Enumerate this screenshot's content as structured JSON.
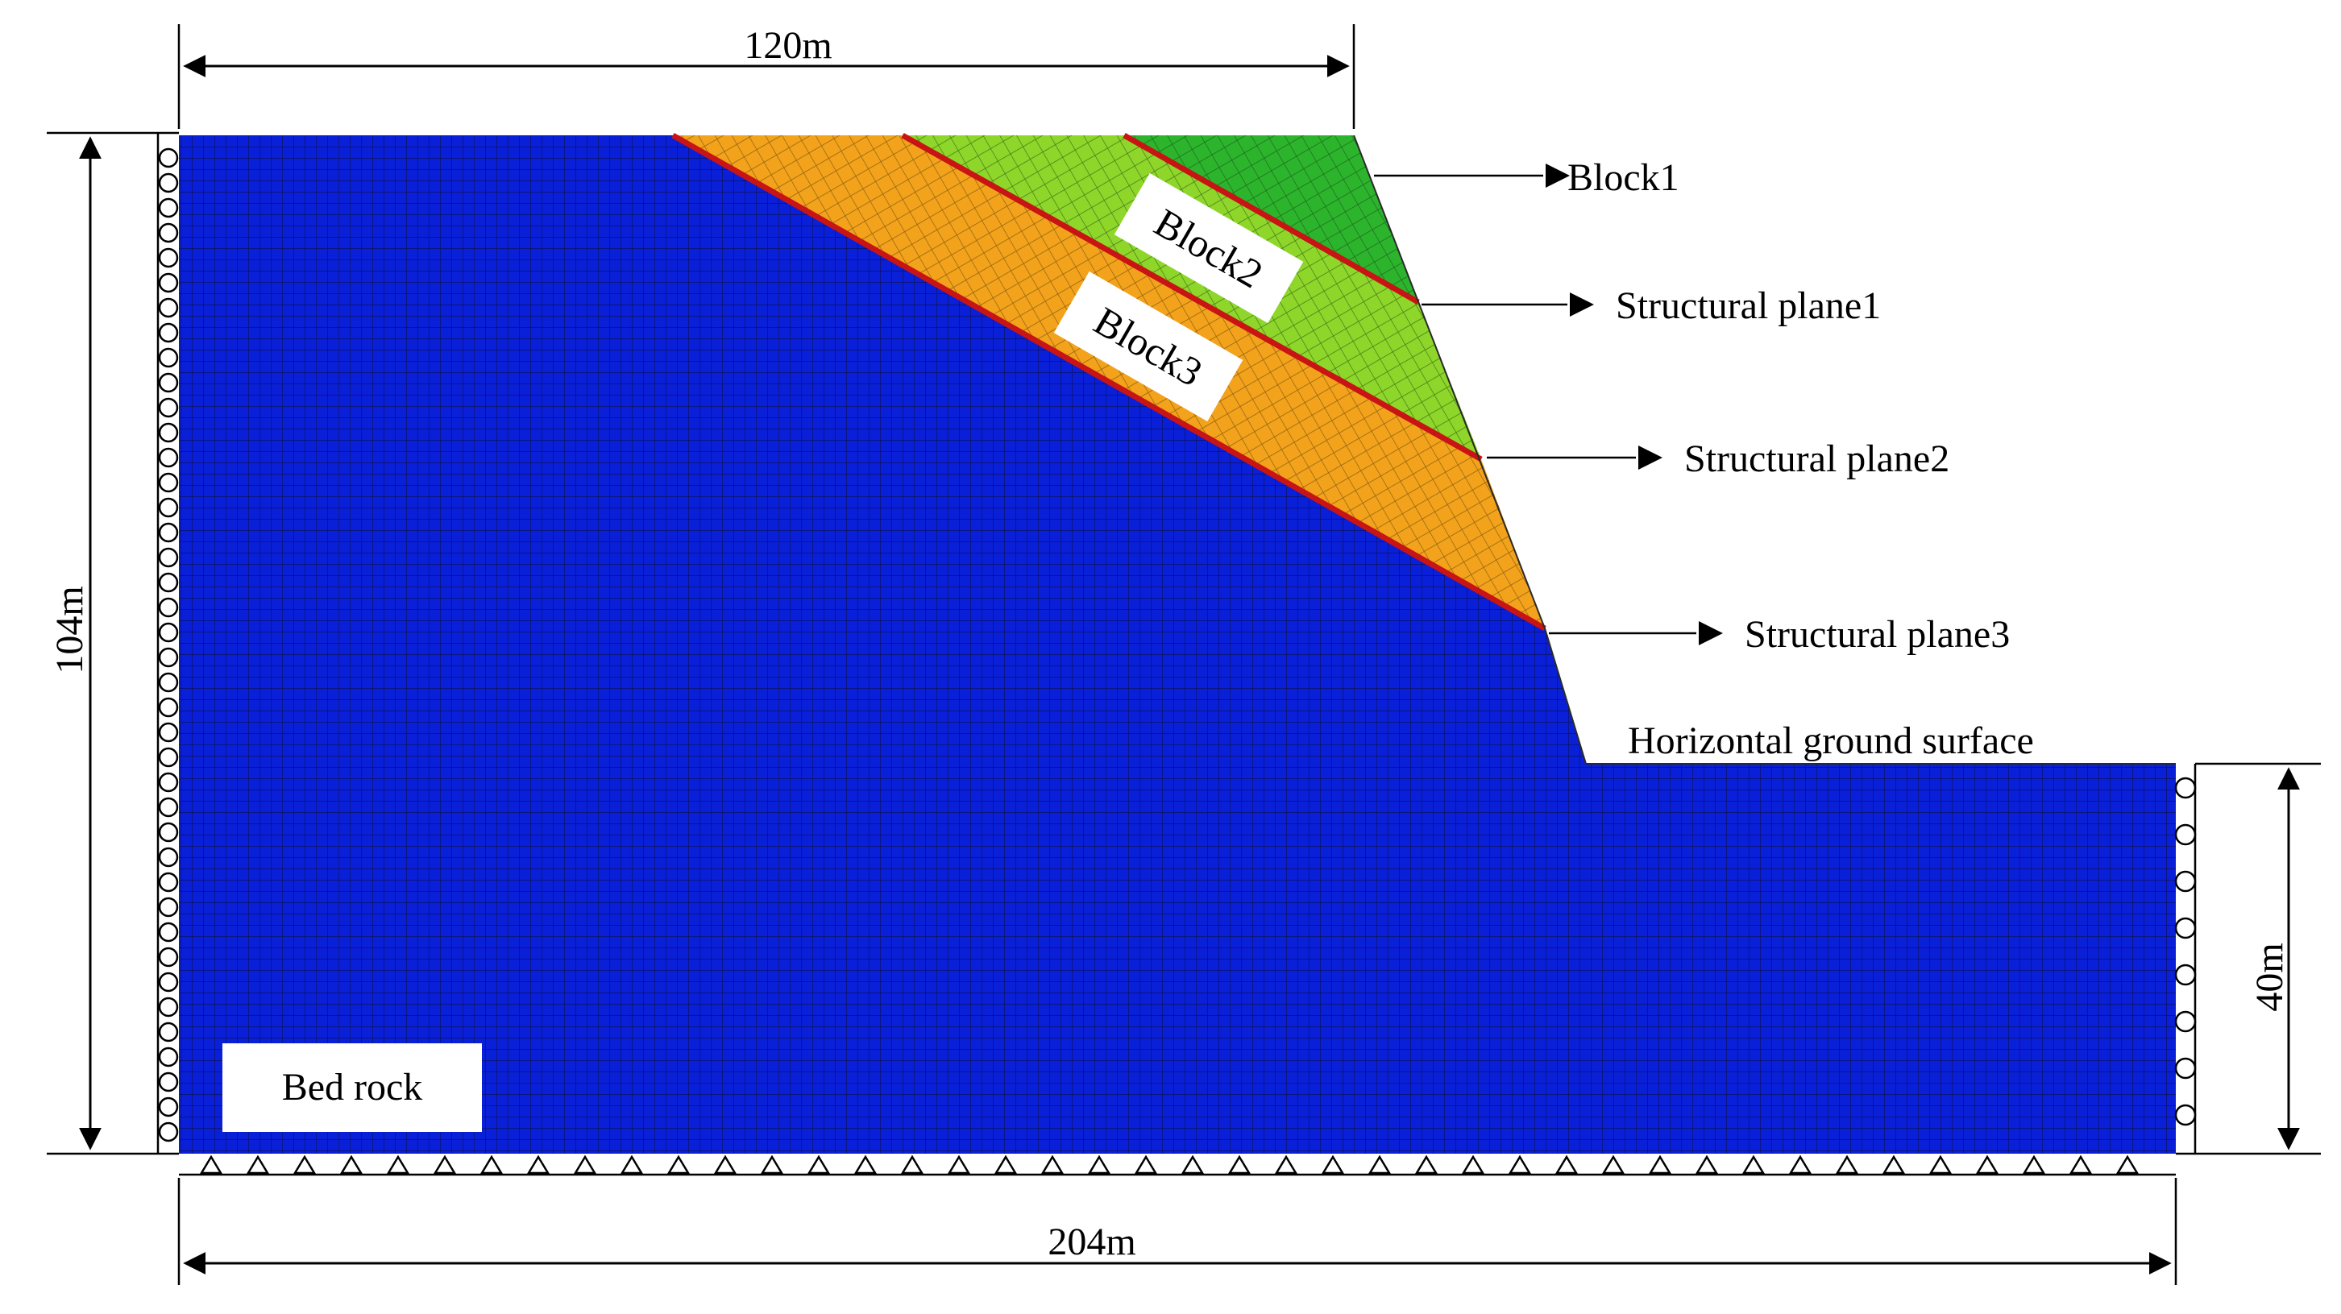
{
  "dimensions": {
    "top_width": "120m",
    "total_height": "104m",
    "right_height": "40m",
    "bottom_width": "204m"
  },
  "labels": {
    "block1": "Block1",
    "block2": "Block2",
    "block3": "Block3",
    "plane1": "Structural plane1",
    "plane2": "Structural plane2",
    "plane3": "Structural plane3",
    "ground": "Horizontal ground surface",
    "bedrock": "Bed rock"
  },
  "colors": {
    "bedrock": "#0a1fd8",
    "block1": "#2db42d",
    "block2": "#8fd62a",
    "block3": "#f3a21c",
    "structural_plane": "#c81414",
    "mesh_line": "#0a0f3a",
    "label_box": "#ffffff"
  },
  "boundary_conditions": {
    "left_side": "roller",
    "right_side": "roller",
    "bottom": "pinned"
  }
}
